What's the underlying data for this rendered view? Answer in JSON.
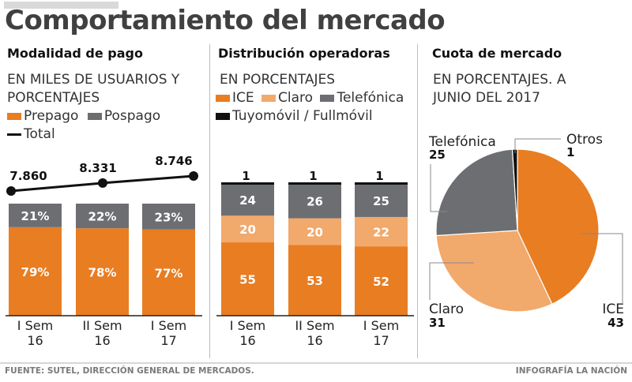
{
  "title": "Comportamiento del mercado",
  "colors": {
    "ice": "#e87d22",
    "claro": "#f2a96c",
    "telefonica": "#6d6e71",
    "otros": "#111111",
    "prepago": "#e87d22",
    "pospago": "#6d6e71",
    "total": "#111111"
  },
  "footer": {
    "source": "FUENTE: SUTEL, DIRECCIÓN GENERAL DE MERCADOS.",
    "credit": "INFOGRAFÍA LA NACIÓN"
  },
  "sections": {
    "modalidad": {
      "title": "Modalidad de pago",
      "subtitle_line1": "EN MILES DE USUARIOS Y",
      "subtitle_line2": "PORCENTAJES",
      "legend": {
        "prepago": "Prepago",
        "pospago": "Pospago",
        "total": "Total"
      }
    },
    "distribucion": {
      "title": "Distribución operadoras",
      "subtitle": "EN PORCENTAJES",
      "legend": {
        "ice": "ICE",
        "claro": "Claro",
        "telefonica": "Telefónica",
        "tuyo": "Tuyomóvil / Fullmóvil"
      }
    },
    "cuota": {
      "title": "Cuota de mercado",
      "subtitle_line1": "EN PORCENTAJES. A",
      "subtitle_line2": "JUNIO DEL 2017"
    }
  },
  "chart_data": [
    {
      "type": "bar",
      "title": "Modalidad de pago",
      "subtitle": "EN MILES DE USUARIOS Y PORCENTAJES",
      "stacked": true,
      "categories": [
        [
          "I Sem",
          "16"
        ],
        [
          "II Sem",
          "16"
        ],
        [
          "I Sem",
          "17"
        ]
      ],
      "series": [
        {
          "name": "Prepago",
          "values": [
            79,
            78,
            77
          ],
          "labels": [
            "79%",
            "78%",
            "77%"
          ]
        },
        {
          "name": "Pospago",
          "values": [
            21,
            22,
            23
          ],
          "labels": [
            "21%",
            "22%",
            "23%"
          ]
        }
      ],
      "line_series": {
        "name": "Total",
        "values": [
          7860,
          8331,
          8746
        ],
        "labels": [
          "7.860",
          "8.331",
          "8.746"
        ]
      },
      "ylim": [
        0,
        100
      ],
      "grid": false,
      "legend": "top-left"
    },
    {
      "type": "bar",
      "title": "Distribución operadoras",
      "subtitle": "EN PORCENTAJES",
      "stacked": true,
      "categories": [
        [
          "I Sem",
          "16"
        ],
        [
          "II Sem",
          "16"
        ],
        [
          "I Sem",
          "17"
        ]
      ],
      "series": [
        {
          "name": "ICE",
          "values": [
            55,
            53,
            52
          ]
        },
        {
          "name": "Claro",
          "values": [
            20,
            20,
            22
          ]
        },
        {
          "name": "Telefónica",
          "values": [
            24,
            26,
            25
          ]
        },
        {
          "name": "Tuyomóvil / Fullmóvil",
          "values": [
            1,
            1,
            1
          ]
        }
      ],
      "ylim": [
        0,
        100
      ],
      "grid": false,
      "legend": "top-left"
    },
    {
      "type": "pie",
      "title": "Cuota de mercado",
      "subtitle": "EN PORCENTAJES. A JUNIO DEL 2017",
      "slices": [
        {
          "name": "ICE",
          "value": 43
        },
        {
          "name": "Claro",
          "value": 31
        },
        {
          "name": "Telefónica",
          "value": 25
        },
        {
          "name": "Otros",
          "value": 1
        }
      ]
    }
  ]
}
